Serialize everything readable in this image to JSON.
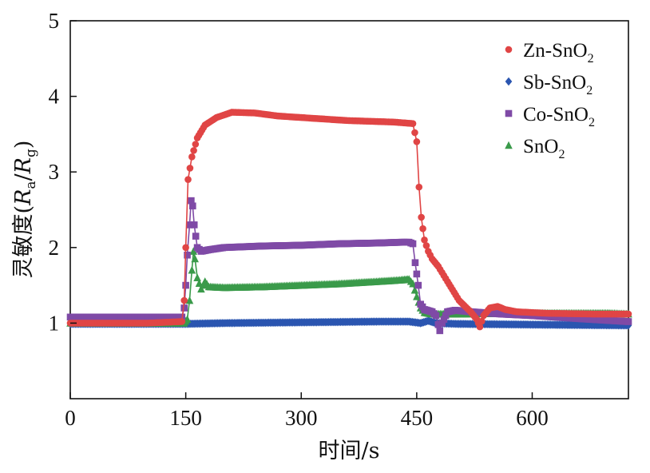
{
  "chart_data": {
    "type": "line",
    "xlabel": "时间/s",
    "ylabel_parts": [
      "灵敏度(",
      "R",
      "a",
      "/",
      "R",
      "g",
      ")"
    ],
    "xlim": [
      0,
      725
    ],
    "ylim": [
      0,
      5
    ],
    "x_ticks": [
      0,
      150,
      300,
      450,
      600
    ],
    "y_ticks": [
      1,
      2,
      3,
      4,
      5
    ],
    "x_tick_labels": [
      "0",
      "150",
      "300",
      "450",
      "600"
    ],
    "y_tick_labels": [
      "1",
      "2",
      "3",
      "4",
      "5"
    ],
    "legend_position": "top-right",
    "series": [
      {
        "name_parts": [
          "Zn-SnO",
          "2"
        ],
        "color": "#e04545",
        "marker": "circle",
        "points": [
          [
            0,
            1.0
          ],
          [
            100,
            1.0
          ],
          [
            145,
            1.02
          ],
          [
            148,
            1.3
          ],
          [
            150,
            2.0
          ],
          [
            153,
            2.9
          ],
          [
            158,
            3.2
          ],
          [
            165,
            3.45
          ],
          [
            175,
            3.62
          ],
          [
            190,
            3.72
          ],
          [
            210,
            3.79
          ],
          [
            240,
            3.78
          ],
          [
            270,
            3.74
          ],
          [
            300,
            3.72
          ],
          [
            330,
            3.7
          ],
          [
            360,
            3.68
          ],
          [
            390,
            3.67
          ],
          [
            420,
            3.66
          ],
          [
            445,
            3.64
          ],
          [
            450,
            3.4
          ],
          [
            453,
            2.8
          ],
          [
            456,
            2.4
          ],
          [
            460,
            2.1
          ],
          [
            465,
            1.95
          ],
          [
            470,
            1.85
          ],
          [
            478,
            1.75
          ],
          [
            490,
            1.55
          ],
          [
            505,
            1.3
          ],
          [
            520,
            1.15
          ],
          [
            528,
            1.05
          ],
          [
            532,
            0.95
          ],
          [
            537,
            1.1
          ],
          [
            545,
            1.2
          ],
          [
            555,
            1.22
          ],
          [
            565,
            1.18
          ],
          [
            580,
            1.15
          ],
          [
            620,
            1.13
          ],
          [
            680,
            1.12
          ],
          [
            725,
            1.12
          ]
        ]
      },
      {
        "name_parts": [
          "Sb-SnO",
          "2"
        ],
        "color": "#2a55b0",
        "marker": "diamond",
        "points": [
          [
            0,
            0.99
          ],
          [
            150,
            0.99
          ],
          [
            200,
            1.0
          ],
          [
            300,
            1.01
          ],
          [
            400,
            1.02
          ],
          [
            440,
            1.02
          ],
          [
            455,
            1.0
          ],
          [
            465,
            1.03
          ],
          [
            475,
            1.0
          ],
          [
            500,
            0.99
          ],
          [
            600,
            0.98
          ],
          [
            725,
            0.97
          ]
        ]
      },
      {
        "name_parts": [
          "Co-SnO",
          "2"
        ],
        "color": "#7f4aa6",
        "marker": "square",
        "points": [
          [
            0,
            1.08
          ],
          [
            145,
            1.08
          ],
          [
            148,
            1.2
          ],
          [
            150,
            1.5
          ],
          [
            152,
            1.9
          ],
          [
            155,
            2.3
          ],
          [
            157,
            2.62
          ],
          [
            159,
            2.55
          ],
          [
            161,
            2.3
          ],
          [
            165,
            2.0
          ],
          [
            170,
            1.95
          ],
          [
            180,
            1.97
          ],
          [
            200,
            2.0
          ],
          [
            250,
            2.02
          ],
          [
            300,
            2.03
          ],
          [
            350,
            2.05
          ],
          [
            400,
            2.06
          ],
          [
            430,
            2.07
          ],
          [
            440,
            2.07
          ],
          [
            445,
            2.05
          ],
          [
            448,
            1.8
          ],
          [
            452,
            1.5
          ],
          [
            455,
            1.25
          ],
          [
            460,
            1.18
          ],
          [
            470,
            1.15
          ],
          [
            475,
            1.1
          ],
          [
            478,
            0.98
          ],
          [
            480,
            0.9
          ],
          [
            483,
            1.0
          ],
          [
            490,
            1.15
          ],
          [
            500,
            1.17
          ],
          [
            520,
            1.15
          ],
          [
            560,
            1.12
          ],
          [
            600,
            1.1
          ],
          [
            660,
            1.06
          ],
          [
            725,
            1.02
          ]
        ]
      },
      {
        "name_parts": [
          "SnO",
          "2"
        ],
        "color": "#3a9a4a",
        "marker": "triangle",
        "points": [
          [
            0,
            1.0
          ],
          [
            148,
            1.0
          ],
          [
            152,
            1.05
          ],
          [
            155,
            1.3
          ],
          [
            158,
            1.7
          ],
          [
            160,
            1.95
          ],
          [
            162,
            1.85
          ],
          [
            165,
            1.6
          ],
          [
            170,
            1.45
          ],
          [
            175,
            1.55
          ],
          [
            180,
            1.48
          ],
          [
            200,
            1.47
          ],
          [
            250,
            1.48
          ],
          [
            300,
            1.5
          ],
          [
            350,
            1.52
          ],
          [
            400,
            1.55
          ],
          [
            430,
            1.57
          ],
          [
            440,
            1.58
          ],
          [
            445,
            1.52
          ],
          [
            450,
            1.35
          ],
          [
            455,
            1.2
          ],
          [
            460,
            1.14
          ],
          [
            470,
            1.12
          ],
          [
            500,
            1.12
          ],
          [
            600,
            1.13
          ],
          [
            700,
            1.13
          ],
          [
            725,
            1.12
          ]
        ]
      }
    ]
  }
}
